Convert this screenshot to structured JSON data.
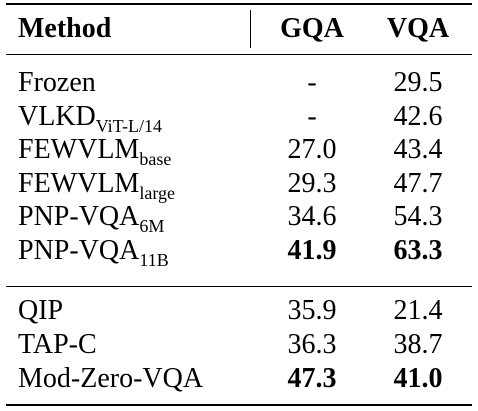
{
  "header": {
    "method": "Method",
    "gqa": "GQA",
    "vqa": "VQA"
  },
  "group1": [
    {
      "name": "Frozen",
      "sub": "",
      "gqa": "-",
      "vqa": "29.5",
      "bold": false
    },
    {
      "name": "VLKD",
      "sub": "ViT-L/14",
      "gqa": "-",
      "vqa": "42.6",
      "bold": false
    },
    {
      "name": "FEWVLM",
      "sub": "base",
      "gqa": "27.0",
      "vqa": "43.4",
      "bold": false
    },
    {
      "name": "FEWVLM",
      "sub": "large",
      "gqa": "29.3",
      "vqa": "47.7",
      "bold": false
    },
    {
      "name": "PNP-VQA",
      "sub": "6M",
      "gqa": "34.6",
      "vqa": "54.3",
      "bold": false
    },
    {
      "name": "PNP-VQA",
      "sub": "11B",
      "gqa": "41.9",
      "vqa": "63.3",
      "bold": true
    }
  ],
  "group2": [
    {
      "name": "QIP",
      "sub": "",
      "gqa": "35.9",
      "vqa": "21.4",
      "bold": false
    },
    {
      "name": "TAP-C",
      "sub": "",
      "gqa": "36.3",
      "vqa": "38.7",
      "bold": false
    },
    {
      "name": "Mod-Zero-VQA",
      "sub": "",
      "gqa": "47.3",
      "vqa": "41.0",
      "bold": true
    }
  ]
}
